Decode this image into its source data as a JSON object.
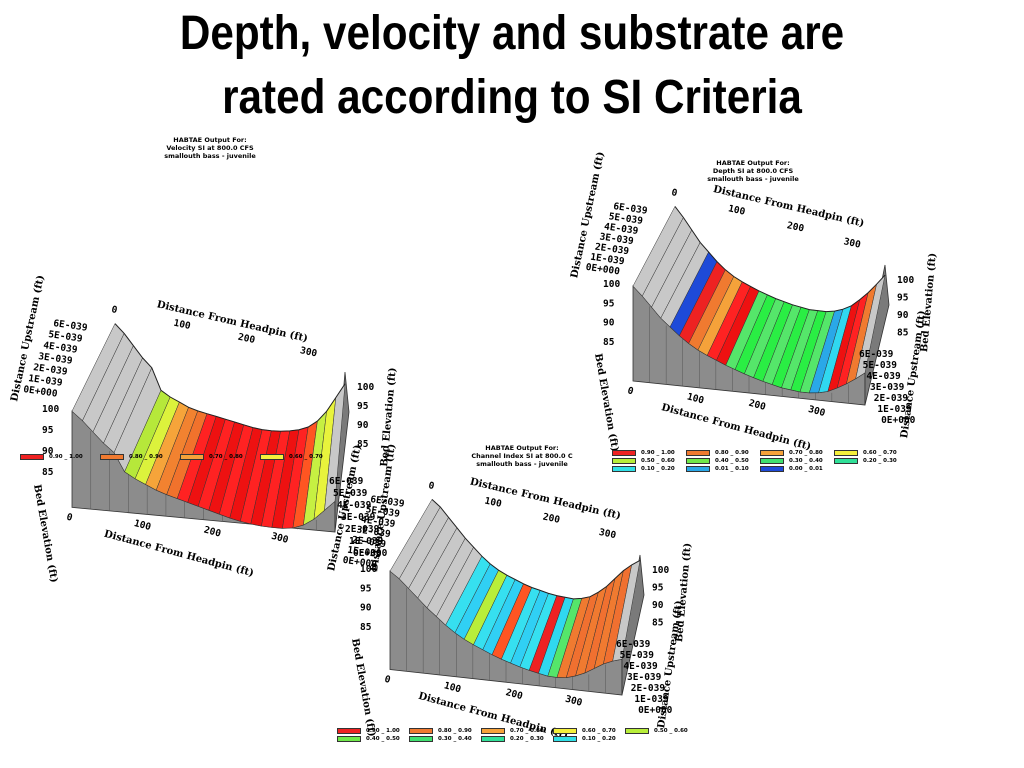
{
  "title_lines": [
    "Depth, velocity and substrate are",
    "rated according to SI Criteria"
  ],
  "panels": [
    {
      "id": "velocity",
      "header": [
        "HABTAE Output For:",
        "Velocity SI at   800.0 CFS",
        "smallouth bass - juvenile"
      ],
      "bands": [
        "#c8c8c8",
        "#c8c8c8",
        "#c8c8c8",
        "#c8c8c8",
        "#c8c8c8",
        "#b6e83a",
        "#dcf23c",
        "#f6a43a",
        "#f28230",
        "#f1722c",
        "#ff2222",
        "#ee1111",
        "#ff2222",
        "#ee1111",
        "#ff2222",
        "#ee1111",
        "#ff2222",
        "#ee1111",
        "#ff2222",
        "#ee1111",
        "#ff2222",
        "#ff5522",
        "#c6f042",
        "#e8f33c",
        "#c8c8c8"
      ],
      "legend": [
        {
          "color": "#ee2222",
          "label": "0.90 _ 1.00"
        },
        {
          "color": "#f07a30",
          "label": "0.80 _ 0.90"
        },
        {
          "color": "#f6a23a",
          "label": "0.70 _ 0.80"
        },
        {
          "color": "#f5f03c",
          "label": "0.60 _ 0.70"
        }
      ]
    },
    {
      "id": "depth",
      "header": [
        "HABTAE Output For:",
        "Depth SI at   800.0 CFS",
        "smallouth bass - juvenile"
      ],
      "bands": [
        "#c8c8c8",
        "#c8c8c8",
        "#c8c8c8",
        "#c8c8c8",
        "#1e4ad8",
        "#ee2222",
        "#f07a30",
        "#f5a23a",
        "#ff2222",
        "#ee1111",
        "#55e66a",
        "#2aee44",
        "#55e66a",
        "#2aee44",
        "#55e66a",
        "#2aee44",
        "#55e66a",
        "#2aee44",
        "#55e66a",
        "#2aa8e8",
        "#30d8f0",
        "#ee1111",
        "#ff2222",
        "#f07a30",
        "#c8c8c8"
      ],
      "legend": [
        {
          "color": "#ee2222",
          "label": "0.90 _ 1.00"
        },
        {
          "color": "#f07a30",
          "label": "0.80 _ 0.90"
        },
        {
          "color": "#f6a23a",
          "label": "0.70 _ 0.80"
        },
        {
          "color": "#f5f03c",
          "label": "0.60 _ 0.70"
        },
        {
          "color": "#b8ee3a",
          "label": "0.50 _ 0.60"
        },
        {
          "color": "#70e84a",
          "label": "0.40 _ 0.50"
        },
        {
          "color": "#40e070",
          "label": "0.30 _ 0.40"
        },
        {
          "color": "#30e098",
          "label": "0.20 _ 0.30"
        },
        {
          "color": "#30e0e8",
          "label": "0.10 _ 0.20"
        },
        {
          "color": "#2aa8e8",
          "label": "0.01 _ 0.10"
        },
        {
          "color": "#1e4ad8",
          "label": "0.00 _ 0.01"
        }
      ]
    },
    {
      "id": "channel",
      "header": [
        "HABTAE Output For:",
        "Channel Index SI at   800.0 C",
        "smallouth bass - juvenile"
      ],
      "bands": [
        "#c8c8c8",
        "#c8c8c8",
        "#c8c8c8",
        "#c8c8c8",
        "#c8c8c8",
        "#c8c8c8",
        "#36e0f0",
        "#30d0f4",
        "#b8ee3a",
        "#36e0f0",
        "#30d0f4",
        "#ff5522",
        "#36e0f0",
        "#30d0f4",
        "#36e0f0",
        "#ee2222",
        "#30d8f0",
        "#55e66a",
        "#f07a30",
        "#f07030",
        "#f07a30",
        "#f07030",
        "#f07a30",
        "#f07030",
        "#c8c8c8"
      ],
      "legend": [
        {
          "color": "#ee2222",
          "label": "0.90 _ 1.00"
        },
        {
          "color": "#f07a30",
          "label": "0.80 _ 0.90"
        },
        {
          "color": "#f6a23a",
          "label": "0.70 _ 0.80"
        },
        {
          "color": "#f5f03c",
          "label": "0.60 _ 0.70"
        },
        {
          "color": "#b8ee3a",
          "label": "0.50 _ 0.60"
        },
        {
          "color": "#70e84a",
          "label": "0.40 _ 0.50"
        },
        {
          "color": "#40e070",
          "label": "0.30 _ 0.40"
        },
        {
          "color": "#30e098",
          "label": "0.20 _ 0.30"
        },
        {
          "color": "#30e0e8",
          "label": "0.10 _ 0.20"
        }
      ]
    }
  ],
  "axes": {
    "top_label": "Distance From Headpin (ft)",
    "bottom_label": "Distance From Headpin (ft)",
    "left_up_label": "Distance Upstream (ft)",
    "left_bed_label": "Bed Elevation (ft)",
    "right_bed_label": "Bed Elevation (ft)",
    "right_up_label": "Distance Upstream (ft)",
    "dist_ticks": [
      "0",
      "100",
      "200",
      "300"
    ],
    "up_ticks": [
      "6E-039",
      "5E-039",
      "4E-039",
      "3E-039",
      "2E-039",
      "1E-039",
      "0E+000"
    ],
    "elev_ticks": [
      "100",
      "95",
      "90",
      "85"
    ]
  }
}
